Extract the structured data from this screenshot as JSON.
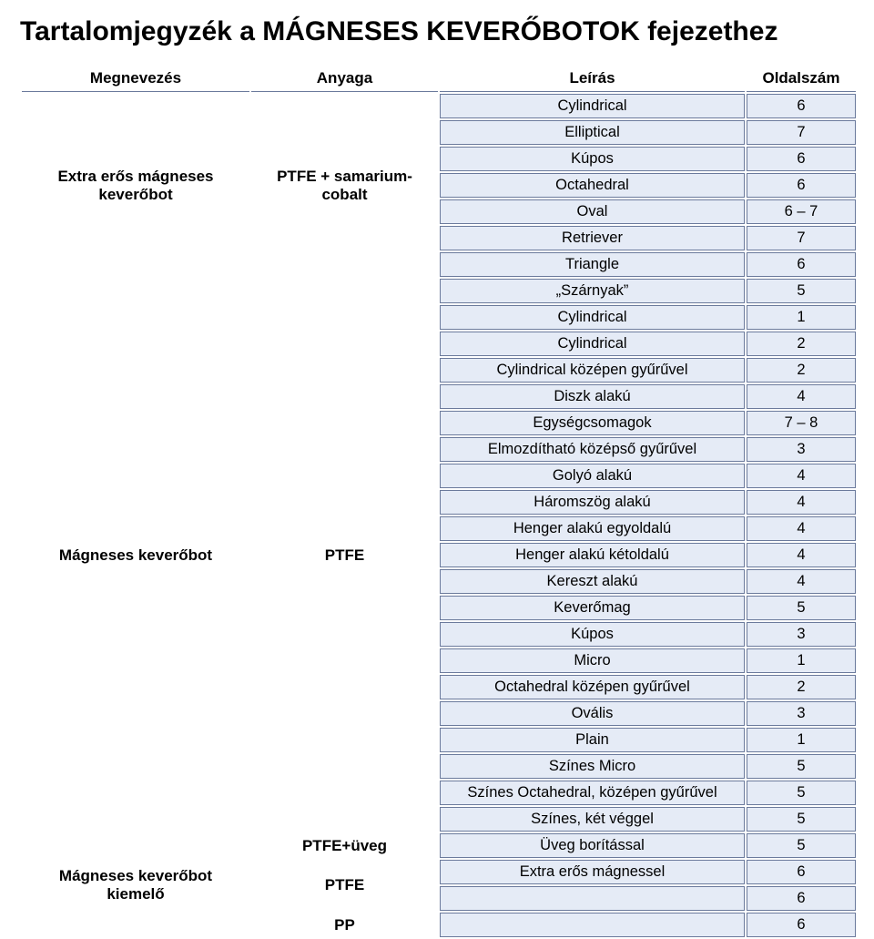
{
  "title": "Tartalomjegyzék a MÁGNESES KEVERŐBOTOK fejezethez",
  "columns": {
    "megnevezes": "Megnevezés",
    "anyaga": "Anyaga",
    "leiras": "Leírás",
    "oldalszam": "Oldalszám"
  },
  "colors": {
    "tint": "#e5ebf6",
    "cell_border": "#6b7a9c",
    "page_bg": "#ffffff",
    "text": "#000000"
  },
  "groups": [
    {
      "megnevezes": "Extra erős mágneses keverőbot",
      "anyaga": "PTFE + samarium-cobalt",
      "rows": [
        {
          "leiras": "Cylindrical",
          "oldal": "6"
        },
        {
          "leiras": "Elliptical",
          "oldal": "7"
        },
        {
          "leiras": "Kúpos",
          "oldal": "6"
        },
        {
          "leiras": "Octahedral",
          "oldal": "6"
        },
        {
          "leiras": "Oval",
          "oldal": "6 – 7"
        },
        {
          "leiras": "Retriever",
          "oldal": "7"
        },
        {
          "leiras": "Triangle",
          "oldal": "6"
        }
      ]
    },
    {
      "megnevezes": "Mágneses keverőbot",
      "anyaga": "PTFE",
      "rows": [
        {
          "leiras": "„Szárnyak”",
          "oldal": "5"
        },
        {
          "leiras": "Cylindrical",
          "oldal": "1"
        },
        {
          "leiras": "Cylindrical",
          "oldal": "2"
        },
        {
          "leiras": "Cylindrical középen gyűrűvel",
          "oldal": "2"
        },
        {
          "leiras": "Diszk alakú",
          "oldal": "4"
        },
        {
          "leiras": "Egységcsomagok",
          "oldal": "7 – 8"
        },
        {
          "leiras": "Elmozdítható középső gyűrűvel",
          "oldal": "3"
        },
        {
          "leiras": "Golyó alakú",
          "oldal": "4"
        },
        {
          "leiras": "Háromszög alakú",
          "oldal": "4"
        },
        {
          "leiras": "Henger alakú egyoldalú",
          "oldal": "4"
        },
        {
          "leiras": "Henger alakú kétoldalú",
          "oldal": "4"
        },
        {
          "leiras": "Kereszt alakú",
          "oldal": "4"
        },
        {
          "leiras": "Keverőmag",
          "oldal": "5"
        },
        {
          "leiras": "Kúpos",
          "oldal": "3"
        },
        {
          "leiras": "Micro",
          "oldal": "1"
        },
        {
          "leiras": "Octahedral középen gyűrűvel",
          "oldal": "2"
        },
        {
          "leiras": "Ovális",
          "oldal": "3"
        },
        {
          "leiras": "Plain",
          "oldal": "1"
        },
        {
          "leiras": "Színes Micro",
          "oldal": "5"
        },
        {
          "leiras": "Színes Octahedral, középen gyűrűvel",
          "oldal": "5"
        },
        {
          "leiras": "Színes, két véggel",
          "oldal": "5"
        }
      ]
    },
    {
      "megnevezes": "",
      "anyaga": "PTFE+üveg",
      "rows": [
        {
          "leiras": "Üveg borítással",
          "oldal": "5"
        }
      ]
    },
    {
      "megnevezes": "Mágneses keverőbot kiemelő",
      "anyaga": "PTFE",
      "rows": [
        {
          "leiras": "Extra erős mágnessel",
          "oldal": "6"
        },
        {
          "leiras": "",
          "oldal": "6"
        }
      ]
    },
    {
      "megnevezes": "",
      "anyaga": "PP",
      "rows": [
        {
          "leiras": "",
          "oldal": "6"
        }
      ]
    }
  ]
}
